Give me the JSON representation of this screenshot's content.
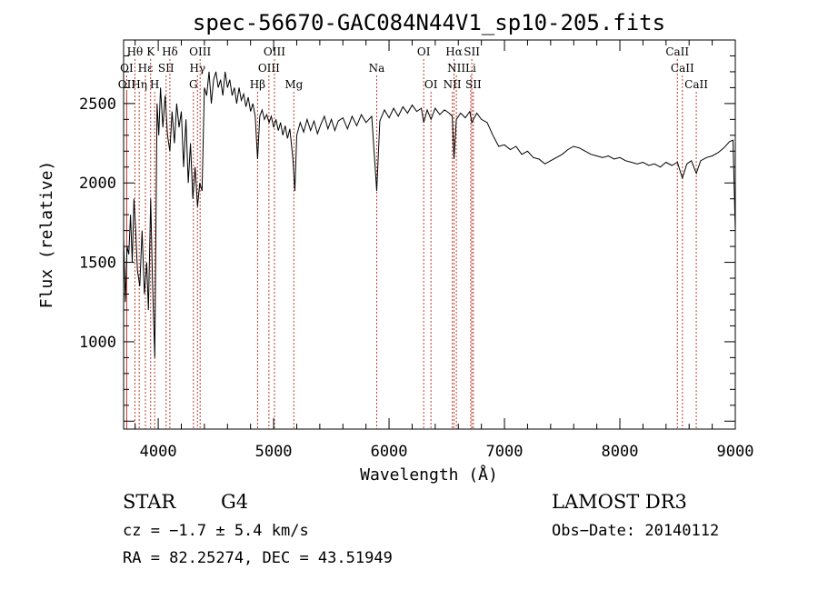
{
  "chart_data": {
    "type": "line",
    "title": "spec-56670-GAC084N44V1_sp10-205.fits",
    "xlabel": "Wavelength (Å)",
    "ylabel": "Flux (relative)",
    "xlim": [
      3700,
      9000
    ],
    "ylim": [
      450,
      2900
    ],
    "xticks": [
      4000,
      5000,
      6000,
      7000,
      8000,
      9000
    ],
    "yticks": [
      1000,
      1500,
      2000,
      2500
    ],
    "grid": false,
    "series": [
      {
        "name": "flux",
        "points": [
          [
            3700,
            1650
          ],
          [
            3715,
            1250
          ],
          [
            3730,
            1600
          ],
          [
            3745,
            1550
          ],
          [
            3760,
            1800
          ],
          [
            3775,
            1500
          ],
          [
            3790,
            1900
          ],
          [
            3805,
            1700
          ],
          [
            3820,
            1450
          ],
          [
            3840,
            1350
          ],
          [
            3860,
            1700
          ],
          [
            3880,
            1300
          ],
          [
            3900,
            1500
          ],
          [
            3915,
            1200
          ],
          [
            3935,
            1900
          ],
          [
            3950,
            1400
          ],
          [
            3970,
            900
          ],
          [
            3990,
            2500
          ],
          [
            4005,
            2300
          ],
          [
            4020,
            2600
          ],
          [
            4040,
            2350
          ],
          [
            4060,
            2550
          ],
          [
            4080,
            2300
          ],
          [
            4101,
            2200
          ],
          [
            4120,
            2450
          ],
          [
            4140,
            2250
          ],
          [
            4160,
            2500
          ],
          [
            4180,
            2350
          ],
          [
            4200,
            2450
          ],
          [
            4220,
            2100
          ],
          [
            4240,
            2400
          ],
          [
            4260,
            2000
          ],
          [
            4280,
            2250
          ],
          [
            4300,
            1900
          ],
          [
            4320,
            2100
          ],
          [
            4340,
            1850
          ],
          [
            4360,
            2000
          ],
          [
            4380,
            1950
          ],
          [
            4400,
            2600
          ],
          [
            4420,
            2550
          ],
          [
            4440,
            2700
          ],
          [
            4460,
            2500
          ],
          [
            4480,
            2650
          ],
          [
            4500,
            2700
          ],
          [
            4520,
            2600
          ],
          [
            4540,
            2650
          ],
          [
            4560,
            2550
          ],
          [
            4580,
            2700
          ],
          [
            4600,
            2600
          ],
          [
            4620,
            2650
          ],
          [
            4640,
            2550
          ],
          [
            4660,
            2600
          ],
          [
            4680,
            2500
          ],
          [
            4700,
            2600
          ],
          [
            4720,
            2520
          ],
          [
            4740,
            2560
          ],
          [
            4760,
            2480
          ],
          [
            4780,
            2540
          ],
          [
            4800,
            2450
          ],
          [
            4820,
            2500
          ],
          [
            4840,
            2420
          ],
          [
            4861,
            2150
          ],
          [
            4880,
            2420
          ],
          [
            4900,
            2460
          ],
          [
            4920,
            2400
          ],
          [
            4940,
            2430
          ],
          [
            4960,
            2380
          ],
          [
            4980,
            2420
          ],
          [
            5000,
            2350
          ],
          [
            5020,
            2400
          ],
          [
            5040,
            2330
          ],
          [
            5060,
            2380
          ],
          [
            5080,
            2300
          ],
          [
            5100,
            2360
          ],
          [
            5120,
            2280
          ],
          [
            5140,
            2340
          ],
          [
            5167,
            2150
          ],
          [
            5184,
            1950
          ],
          [
            5200,
            2300
          ],
          [
            5230,
            2380
          ],
          [
            5260,
            2320
          ],
          [
            5290,
            2400
          ],
          [
            5320,
            2330
          ],
          [
            5350,
            2390
          ],
          [
            5380,
            2310
          ],
          [
            5410,
            2370
          ],
          [
            5440,
            2420
          ],
          [
            5470,
            2340
          ],
          [
            5500,
            2400
          ],
          [
            5530,
            2330
          ],
          [
            5560,
            2390
          ],
          [
            5600,
            2410
          ],
          [
            5640,
            2340
          ],
          [
            5680,
            2420
          ],
          [
            5720,
            2360
          ],
          [
            5760,
            2430
          ],
          [
            5800,
            2380
          ],
          [
            5850,
            2420
          ],
          [
            5893,
            1950
          ],
          [
            5920,
            2390
          ],
          [
            5960,
            2460
          ],
          [
            6000,
            2410
          ],
          [
            6040,
            2470
          ],
          [
            6080,
            2420
          ],
          [
            6120,
            2480
          ],
          [
            6160,
            2440
          ],
          [
            6200,
            2490
          ],
          [
            6240,
            2450
          ],
          [
            6280,
            2470
          ],
          [
            6300,
            2380
          ],
          [
            6330,
            2460
          ],
          [
            6363,
            2400
          ],
          [
            6400,
            2470
          ],
          [
            6440,
            2430
          ],
          [
            6480,
            2460
          ],
          [
            6520,
            2440
          ],
          [
            6548,
            2420
          ],
          [
            6563,
            2150
          ],
          [
            6583,
            2400
          ],
          [
            6620,
            2440
          ],
          [
            6660,
            2410
          ],
          [
            6700,
            2450
          ],
          [
            6717,
            2380
          ],
          [
            6731,
            2400
          ],
          [
            6760,
            2440
          ],
          [
            6800,
            2400
          ],
          [
            6850,
            2380
          ],
          [
            6900,
            2300
          ],
          [
            6950,
            2230
          ],
          [
            7000,
            2240
          ],
          [
            7050,
            2210
          ],
          [
            7100,
            2230
          ],
          [
            7150,
            2180
          ],
          [
            7200,
            2200
          ],
          [
            7250,
            2160
          ],
          [
            7300,
            2150
          ],
          [
            7350,
            2120
          ],
          [
            7400,
            2140
          ],
          [
            7450,
            2160
          ],
          [
            7500,
            2180
          ],
          [
            7550,
            2210
          ],
          [
            7600,
            2230
          ],
          [
            7650,
            2220
          ],
          [
            7700,
            2200
          ],
          [
            7750,
            2180
          ],
          [
            7800,
            2170
          ],
          [
            7850,
            2160
          ],
          [
            7900,
            2170
          ],
          [
            7950,
            2150
          ],
          [
            8000,
            2160
          ],
          [
            8050,
            2140
          ],
          [
            8100,
            2130
          ],
          [
            8150,
            2120
          ],
          [
            8200,
            2130
          ],
          [
            8250,
            2110
          ],
          [
            8300,
            2120
          ],
          [
            8350,
            2100
          ],
          [
            8400,
            2130
          ],
          [
            8450,
            2110
          ],
          [
            8498,
            2130
          ],
          [
            8542,
            2030
          ],
          [
            8580,
            2120
          ],
          [
            8620,
            2140
          ],
          [
            8662,
            2060
          ],
          [
            8700,
            2140
          ],
          [
            8750,
            2160
          ],
          [
            8800,
            2170
          ],
          [
            8850,
            2190
          ],
          [
            8900,
            2220
          ],
          [
            8950,
            2260
          ],
          [
            8980,
            2270
          ],
          [
            9000,
            1700
          ]
        ]
      }
    ],
    "lines": [
      {
        "label": "Hθ",
        "wl": 3798,
        "row": 0
      },
      {
        "label": "K",
        "wl": 3934,
        "row": 0
      },
      {
        "label": "Hδ",
        "wl": 4101,
        "row": 0
      },
      {
        "label": "OIII",
        "wl": 4363,
        "row": 0
      },
      {
        "label": "OIII",
        "wl": 5007,
        "row": 0
      },
      {
        "label": "OI",
        "wl": 6300,
        "row": 0
      },
      {
        "label": "Hα",
        "wl": 6563,
        "row": 0
      },
      {
        "label": "SII",
        "wl": 6717,
        "row": 0
      },
      {
        "label": "CaII",
        "wl": 8498,
        "row": 0
      },
      {
        "label": "OI",
        "wl": 3727,
        "row": 1
      },
      {
        "label": "Hε",
        "wl": 3889,
        "row": 1
      },
      {
        "label": "SII",
        "wl": 4068,
        "row": 1
      },
      {
        "label": "Hγ",
        "wl": 4340,
        "row": 1
      },
      {
        "label": "OIII",
        "wl": 4959,
        "row": 1
      },
      {
        "label": "Na",
        "wl": 5893,
        "row": 1
      },
      {
        "label": "NII",
        "wl": 6583,
        "row": 1
      },
      {
        "label": "Li",
        "wl": 6708,
        "row": 1
      },
      {
        "label": "CaII",
        "wl": 8542,
        "row": 1
      },
      {
        "label": "OII",
        "wl": 3727,
        "row": 2
      },
      {
        "label": "Hη",
        "wl": 3835,
        "row": 2
      },
      {
        "label": "H",
        "wl": 3969,
        "row": 2
      },
      {
        "label": "G",
        "wl": 4305,
        "row": 2
      },
      {
        "label": "Hβ",
        "wl": 4861,
        "row": 2
      },
      {
        "label": "Mg",
        "wl": 5175,
        "row": 2
      },
      {
        "label": "OI",
        "wl": 6363,
        "row": 2
      },
      {
        "label": "NII",
        "wl": 6548,
        "row": 2
      },
      {
        "label": "SII",
        "wl": 6731,
        "row": 2
      },
      {
        "label": "CaII",
        "wl": 8662,
        "row": 2
      }
    ]
  },
  "info": {
    "object_class": "STAR",
    "subclass": "G4",
    "survey": "LAMOST DR3",
    "cz": "cz = −1.7 ± 5.4 km/s",
    "obs_date": "Obs−Date: 20140112",
    "coords": "RA =  82.25274, DEC =  43.51949"
  },
  "colors": {
    "line": "#000000",
    "marker": "#c0392b",
    "axis": "#000000"
  }
}
